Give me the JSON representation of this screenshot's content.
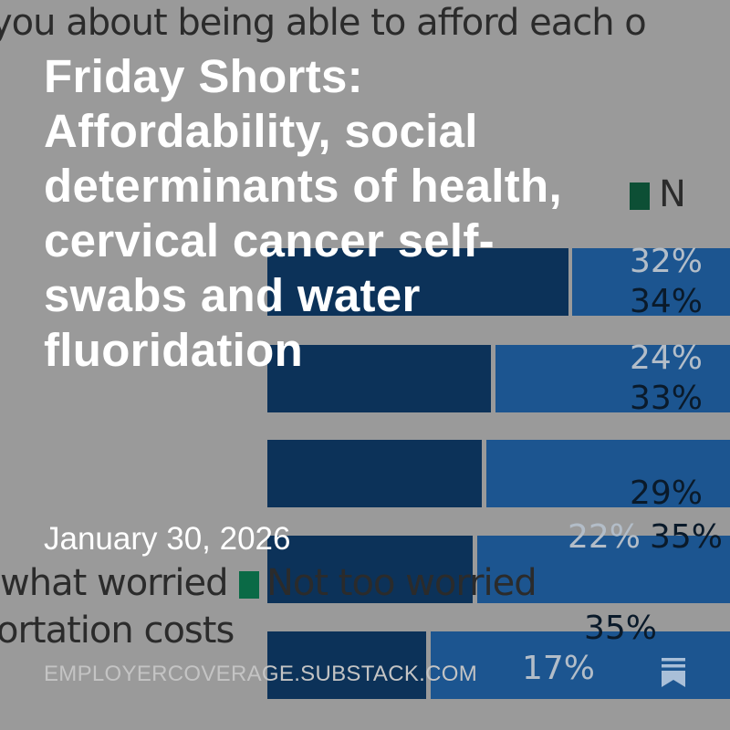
{
  "background_chart": {
    "question_fragment": "you about being able to afford each o",
    "legend": [
      "what worried",
      "Not too worried",
      "N"
    ],
    "legend_colors": [
      "#0a7a50",
      "#0e5a3c"
    ],
    "row_label_fragment": "ortation costs",
    "bars": [
      {
        "dark": "32%",
        "light": "34%"
      },
      {
        "dark": "24%",
        "light": "33%"
      },
      {
        "dark": "",
        "light": "29%"
      },
      {
        "dark": "22%",
        "light": "35%"
      },
      {
        "dark": "17%",
        "light": "35%"
      }
    ]
  },
  "post": {
    "title": "Friday Shorts: Affordability, social determinants of health, cervical cancer self-swabs and water fluoridation",
    "date": "January 30, 2026",
    "site": "EMPLOYERCOVERAGE.SUBSTACK.COM",
    "icon": "substack-bookmark-icon"
  }
}
